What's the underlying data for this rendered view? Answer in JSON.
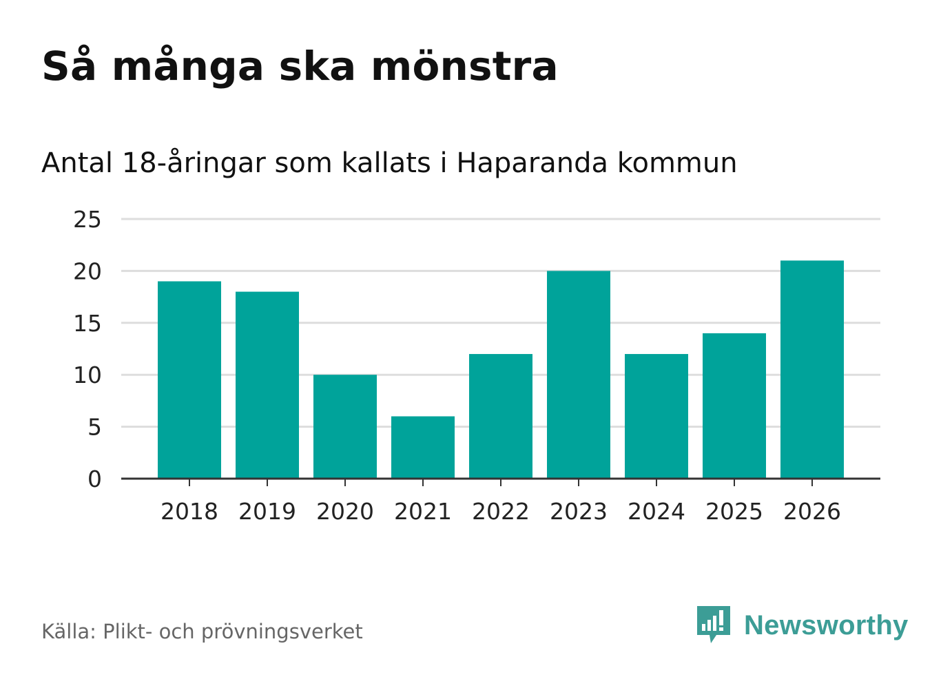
{
  "header": {
    "title": "Så många ska mönstra",
    "subtitle": "Antal 18-åringar som kallats i Haparanda kommun"
  },
  "footer": {
    "source": "Källa: Plikt- och prövningsverket",
    "brand": "Newsworthy"
  },
  "colors": {
    "bar": "#00a39a",
    "grid": "#dddddd",
    "axis": "#333333",
    "brand": "#3c9d96"
  },
  "chart_data": {
    "type": "bar",
    "title": "Så många ska mönstra",
    "subtitle": "Antal 18-åringar som kallats i Haparanda kommun",
    "categories": [
      "2018",
      "2019",
      "2020",
      "2021",
      "2022",
      "2023",
      "2024",
      "2025",
      "2026"
    ],
    "values": [
      19,
      18,
      10,
      6,
      12,
      20,
      12,
      14,
      21
    ],
    "xlabel": "",
    "ylabel": "",
    "ylim": [
      0,
      25
    ],
    "yticks": [
      "0",
      "5",
      "10",
      "15",
      "20",
      "25"
    ],
    "grid": true
  }
}
